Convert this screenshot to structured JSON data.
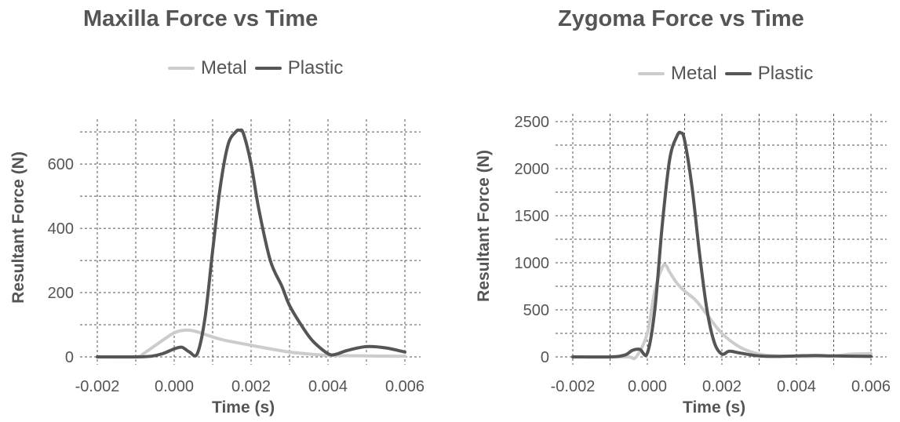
{
  "chart_data": [
    {
      "type": "line",
      "title": "Maxilla Force vs Time",
      "xlabel": "Time (s)",
      "ylabel": "Resultant Force (N)",
      "xlim": [
        -0.002,
        0.006
      ],
      "ylim": [
        0,
        700
      ],
      "xticks": [
        -0.002,
        0.0,
        0.002,
        0.004,
        0.006
      ],
      "xtick_labels": [
        "-0.002",
        "0.000",
        "0.002",
        "0.004",
        "0.006"
      ],
      "yticks": [
        0,
        200,
        400,
        600
      ],
      "ytick_labels": [
        "0",
        "200",
        "400",
        "600"
      ],
      "grid": true,
      "legend_position": "top",
      "series": [
        {
          "name": "Metal",
          "color": "#cccccc",
          "x": [
            -0.002,
            -0.001,
            -0.0008,
            -0.0005,
            -0.0002,
            0.0,
            0.0002,
            0.0004,
            0.0006,
            0.0008,
            0.001,
            0.0013,
            0.0016,
            0.002,
            0.0025,
            0.003,
            0.0035,
            0.004,
            0.005,
            0.006
          ],
          "y": [
            0,
            0,
            10,
            35,
            60,
            75,
            82,
            83,
            78,
            70,
            62,
            52,
            45,
            36,
            25,
            15,
            9,
            5,
            3,
            2
          ]
        },
        {
          "name": "Plastic",
          "color": "#555555",
          "x": [
            -0.002,
            -0.001,
            -0.0006,
            -0.0003,
            0.0,
            0.0002,
            0.0004,
            0.0006,
            0.0008,
            0.001,
            0.0012,
            0.0014,
            0.0016,
            0.0017,
            0.0018,
            0.002,
            0.0022,
            0.0025,
            0.0028,
            0.003,
            0.0033,
            0.0036,
            0.004,
            0.0042,
            0.0045,
            0.005,
            0.0055,
            0.006
          ],
          "y": [
            0,
            0,
            2,
            10,
            25,
            30,
            15,
            10,
            120,
            330,
            530,
            660,
            700,
            705,
            695,
            600,
            460,
            300,
            220,
            160,
            100,
            50,
            10,
            8,
            20,
            32,
            28,
            15
          ]
        }
      ]
    },
    {
      "type": "line",
      "title": "Zygoma Force vs Time",
      "xlabel": "Time (s)",
      "ylabel": "Resultant Force (N)",
      "xlim": [
        -0.002,
        0.006
      ],
      "ylim": [
        0,
        2500
      ],
      "xticks": [
        -0.002,
        0.0,
        0.002,
        0.004,
        0.006
      ],
      "xtick_labels": [
        "-0.002",
        "0.000",
        "0.002",
        "0.004",
        "0.006"
      ],
      "yticks": [
        0,
        500,
        1000,
        1500,
        2000,
        2500
      ],
      "ytick_labels": [
        "0",
        "500",
        "1000",
        "1500",
        "2000",
        "2500"
      ],
      "grid": true,
      "legend_position": "top",
      "series": [
        {
          "name": "Metal",
          "color": "#cccccc",
          "x": [
            -0.002,
            -0.001,
            -0.0005,
            -0.0003,
            0.0,
            0.0002,
            0.0004,
            0.0005,
            0.0006,
            0.0008,
            0.001,
            0.0013,
            0.0016,
            0.002,
            0.0025,
            0.003,
            0.0035,
            0.004,
            0.0045,
            0.005,
            0.0055,
            0.006
          ],
          "y": [
            0,
            0,
            0,
            0,
            250,
            700,
            950,
            970,
            900,
            780,
            700,
            600,
            450,
            250,
            100,
            30,
            10,
            5,
            5,
            10,
            30,
            35
          ]
        },
        {
          "name": "Plastic",
          "color": "#555555",
          "x": [
            -0.002,
            -0.001,
            -0.0006,
            -0.0004,
            -0.0002,
            0.0,
            0.0002,
            0.0004,
            0.0006,
            0.0008,
            0.0009,
            0.001,
            0.0012,
            0.0014,
            0.0016,
            0.0018,
            0.002,
            0.0022,
            0.0025,
            0.003,
            0.0035,
            0.004,
            0.0045,
            0.005,
            0.006
          ],
          "y": [
            0,
            0,
            20,
            70,
            80,
            40,
            500,
            1400,
            2100,
            2350,
            2380,
            2300,
            1800,
            1100,
            500,
            150,
            30,
            60,
            40,
            10,
            5,
            10,
            15,
            10,
            5
          ]
        }
      ]
    }
  ]
}
